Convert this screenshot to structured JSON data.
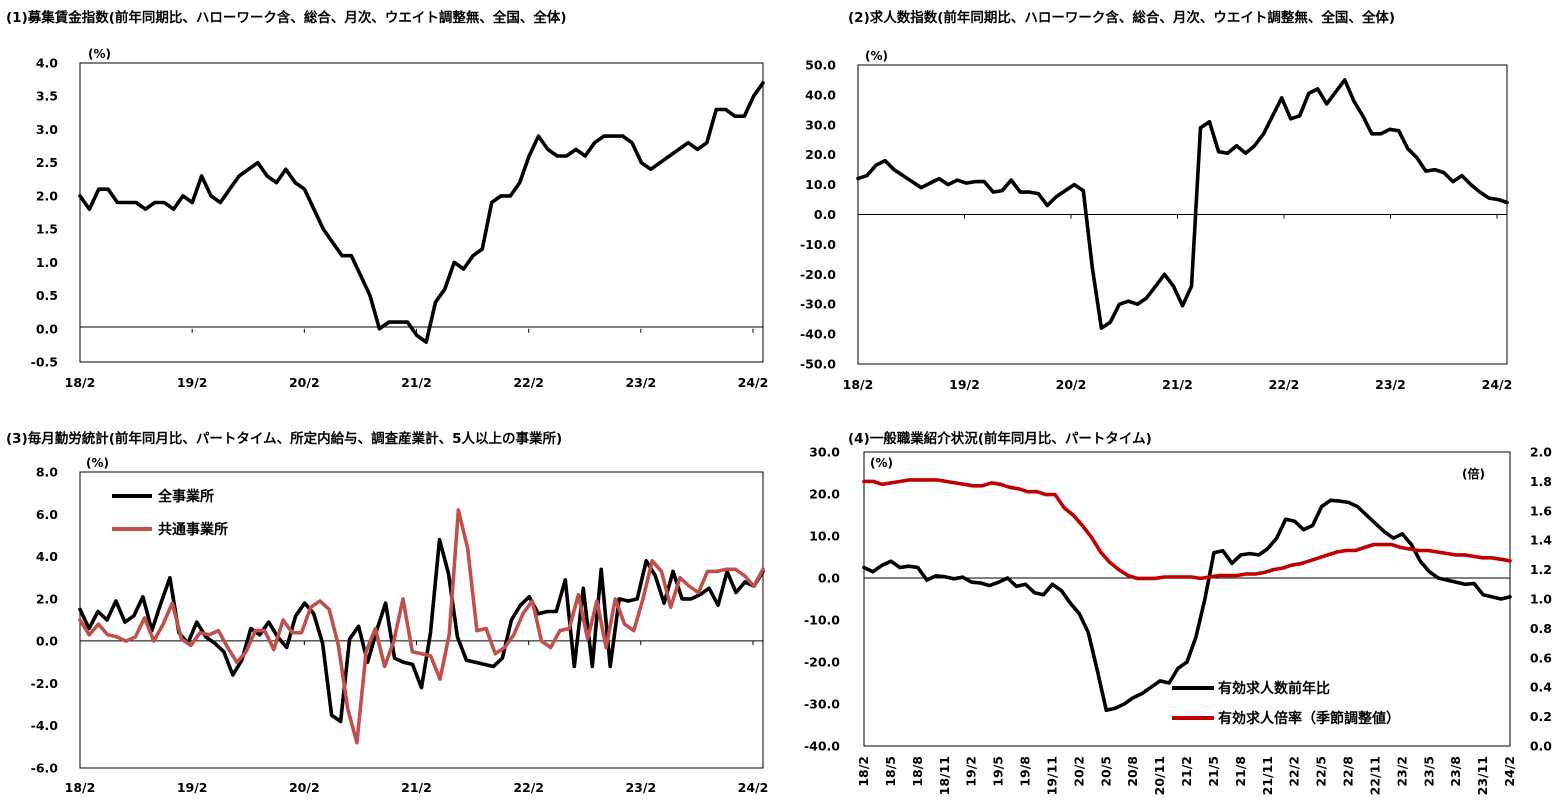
{
  "colors": {
    "black_series": "#000000",
    "red_series": "#c00000",
    "pink_series": "#c0504d"
  },
  "chart_data": [
    {
      "id": "p1",
      "type": "line",
      "title": "(1)募集賃金指数(前年同期比、ハローワーク含、総合、月次、ウエイト調整無、全国、全体)",
      "unit": "(%)",
      "ylim": [
        -0.5,
        4.0
      ],
      "yticks": [
        "4.0",
        "3.5",
        "3.0",
        "2.5",
        "2.0",
        "1.5",
        "1.0",
        "0.5",
        "0.0",
        "-0.5"
      ],
      "xticks": [
        "18/2",
        "19/2",
        "20/2",
        "21/2",
        "22/2",
        "23/2",
        "24/2"
      ],
      "series": [
        {
          "name": "募集賃金指数",
          "color": "#000000",
          "values": [
            2.0,
            1.8,
            2.1,
            2.1,
            1.9,
            1.9,
            1.9,
            1.8,
            1.9,
            1.9,
            1.8,
            2.0,
            1.9,
            2.3,
            2.0,
            1.9,
            2.1,
            2.3,
            2.4,
            2.5,
            2.3,
            2.2,
            2.4,
            2.2,
            2.1,
            1.8,
            1.5,
            1.3,
            1.1,
            1.1,
            0.8,
            0.5,
            0.0,
            0.1,
            0.1,
            0.1,
            -0.1,
            -0.2,
            0.4,
            0.6,
            1.0,
            0.9,
            1.1,
            1.2,
            1.9,
            2.0,
            2.0,
            2.2,
            2.6,
            2.9,
            2.7,
            2.6,
            2.6,
            2.7,
            2.6,
            2.8,
            2.9,
            2.9,
            2.9,
            2.8,
            2.5,
            2.4,
            2.5,
            2.6,
            2.7,
            2.8,
            2.7,
            2.8,
            3.3,
            3.3,
            3.2,
            3.2,
            3.5,
            3.7
          ]
        }
      ]
    },
    {
      "id": "p2",
      "type": "line",
      "title": "(2)求人数指数(前年同期比、ハローワーク含、総合、月次、ウエイト調整無、全国、全体)",
      "unit": "(%)",
      "ylim": [
        -50,
        50
      ],
      "yticks": [
        "50.0",
        "40.0",
        "30.0",
        "20.0",
        "10.0",
        "0.0",
        "-10.0",
        "-20.0",
        "-30.0",
        "-40.0",
        "-50.0"
      ],
      "xticks": [
        "18/2",
        "19/2",
        "20/2",
        "21/2",
        "22/2",
        "23/2",
        "24/2"
      ],
      "series": [
        {
          "name": "求人数指数",
          "color": "#000000",
          "values": [
            12,
            13,
            16.5,
            18,
            15,
            13,
            11,
            9,
            10.5,
            12,
            10,
            11.5,
            10.5,
            11,
            11,
            7.5,
            8,
            11.5,
            7.5,
            7.5,
            7,
            3,
            6,
            8,
            10,
            8,
            -18,
            -38,
            -36,
            -30,
            -29,
            -30,
            -28,
            -24,
            -20,
            -24,
            -30.5,
            -24,
            29,
            31,
            21,
            20.5,
            23,
            20.5,
            23,
            27,
            33,
            39,
            32,
            33,
            40.5,
            42,
            37,
            41,
            45,
            38,
            33,
            27,
            27,
            28.5,
            28,
            22,
            19,
            14.5,
            15,
            14,
            11,
            13,
            10,
            7.5,
            5.5,
            5,
            4
          ]
        }
      ]
    },
    {
      "id": "p3",
      "type": "line",
      "title": "(3)毎月勤労統計(前年同月比、パートタイム、所定内給与、調査産業計、5人以上の事業所)",
      "unit": "(%)",
      "ylim": [
        -6,
        8
      ],
      "yticks": [
        "8.0",
        "6.0",
        "4.0",
        "2.0",
        "0.0",
        "-2.0",
        "-4.0",
        "-6.0"
      ],
      "xticks": [
        "18/2",
        "19/2",
        "20/2",
        "21/2",
        "22/2",
        "23/2",
        "24/2"
      ],
      "legend": [
        "全事業所",
        "共通事業所"
      ],
      "series": [
        {
          "name": "全事業所",
          "color": "#000000",
          "values": [
            1.5,
            0.6,
            1.4,
            1.0,
            1.9,
            0.9,
            1.2,
            2.1,
            0.5,
            1.8,
            3.0,
            0.4,
            -0.1,
            0.9,
            0.2,
            -0.1,
            -0.5,
            -1.6,
            -0.9,
            0.6,
            0.3,
            0.9,
            0.2,
            -0.3,
            1.2,
            1.8,
            1.3,
            -0.1,
            -3.5,
            -3.8,
            0.1,
            0.7,
            -1.0,
            0.5,
            1.8,
            -0.8,
            -1.0,
            -1.1,
            -2.2,
            0.4,
            4.8,
            3.2,
            0.2,
            -0.9,
            -1.0,
            -1.1,
            -1.2,
            -0.8,
            1.0,
            1.7,
            2.1,
            1.3,
            1.4,
            1.4,
            2.9,
            -1.2,
            2.5,
            -1.2,
            3.4,
            -1.2,
            2.0,
            1.9,
            2.0,
            3.8,
            3.1,
            1.8,
            3.3,
            2.0,
            2.0,
            2.2,
            2.5,
            1.7,
            3.3,
            2.3,
            2.8,
            2.6,
            3.3
          ]
        },
        {
          "name": "共通事業所",
          "color": "#c0504d",
          "values": [
            1.0,
            0.3,
            0.8,
            0.3,
            0.2,
            0.0,
            0.2,
            1.1,
            0.0,
            0.8,
            1.8,
            0.1,
            -0.2,
            0.4,
            0.3,
            0.5,
            -0.3,
            -1.0,
            -0.5,
            0.5,
            0.5,
            -0.4,
            1.0,
            0.4,
            0.4,
            1.6,
            1.9,
            1.5,
            -0.2,
            -3.2,
            -4.8,
            -0.5,
            0.6,
            -1.2,
            0.0,
            2.0,
            -0.5,
            -0.6,
            -0.7,
            -1.8,
            0.3,
            6.2,
            4.4,
            0.5,
            0.6,
            -0.6,
            -0.3,
            0.3,
            1.3,
            1.9,
            0.0,
            -0.3,
            0.5,
            0.6,
            2.2,
            0.1,
            1.9,
            -0.3,
            2.0,
            0.8,
            0.5,
            2.0,
            3.8,
            3.3,
            1.6,
            3.0,
            2.6,
            2.3,
            3.3,
            3.3,
            3.4,
            3.4,
            3.1,
            2.6,
            3.4
          ]
        }
      ]
    },
    {
      "id": "p4",
      "type": "line",
      "title": "(4)一般職業紹介状況(前年同月比、パートタイム)",
      "unit_left": "(%)",
      "unit_right": "(倍)",
      "ylim": [
        -40,
        30
      ],
      "ylim_right": [
        0.0,
        2.0
      ],
      "yticks": [
        "30.0",
        "20.0",
        "10.0",
        "0.0",
        "-10.0",
        "-20.0",
        "-30.0",
        "-40.0"
      ],
      "yticks_right": [
        "2.0",
        "1.8",
        "1.6",
        "1.4",
        "1.2",
        "1.0",
        "0.8",
        "0.6",
        "0.4",
        "0.2",
        "0.0"
      ],
      "xticks": [
        "18/2",
        "18/5",
        "18/8",
        "18/11",
        "19/2",
        "19/5",
        "19/8",
        "19/11",
        "20/2",
        "20/5",
        "20/8",
        "20/11",
        "21/2",
        "21/5",
        "21/8",
        "21/11",
        "22/2",
        "22/5",
        "22/8",
        "22/11",
        "23/2",
        "23/5",
        "23/8",
        "23/11",
        "24/2"
      ],
      "legend": [
        "有効求人数前年比",
        "有効求人倍率（季節調整値）"
      ],
      "series": [
        {
          "name": "有効求人数前年比",
          "axis": "left",
          "color": "#000000",
          "values": [
            2.5,
            1.5,
            3.0,
            4.0,
            2.5,
            2.8,
            2.5,
            -0.5,
            0.5,
            0.3,
            -0.2,
            0.2,
            -1.0,
            -1.2,
            -1.8,
            -1.0,
            0.0,
            -2.0,
            -1.5,
            -3.5,
            -4.0,
            -1.5,
            -3.0,
            -6.0,
            -8.5,
            -13.0,
            -22.0,
            -31.5,
            -31.0,
            -30.0,
            -28.5,
            -27.5,
            -26.0,
            -24.5,
            -25.0,
            -21.5,
            -20.0,
            -14.0,
            -5.0,
            6.0,
            6.5,
            3.5,
            5.5,
            5.8,
            5.5,
            7.0,
            9.5,
            14.0,
            13.5,
            11.5,
            12.5,
            17.0,
            18.5,
            18.3,
            18.0,
            17.0,
            15.0,
            13.0,
            11.0,
            9.5,
            10.5,
            8.0,
            4.0,
            1.5,
            0.0,
            -0.5,
            -1.0,
            -1.5,
            -1.3,
            -4.0,
            -4.5,
            -5.0,
            -4.5
          ]
        },
        {
          "name": "有効求人倍率（季節調整値）",
          "axis": "right",
          "color": "#c00000",
          "values": [
            1.8,
            1.8,
            1.78,
            1.79,
            1.8,
            1.81,
            1.81,
            1.81,
            1.81,
            1.8,
            1.79,
            1.78,
            1.77,
            1.77,
            1.79,
            1.78,
            1.76,
            1.75,
            1.73,
            1.73,
            1.71,
            1.71,
            1.62,
            1.57,
            1.5,
            1.42,
            1.32,
            1.25,
            1.2,
            1.16,
            1.14,
            1.14,
            1.14,
            1.15,
            1.15,
            1.15,
            1.15,
            1.14,
            1.15,
            1.16,
            1.16,
            1.16,
            1.17,
            1.17,
            1.18,
            1.2,
            1.21,
            1.23,
            1.24,
            1.26,
            1.28,
            1.3,
            1.32,
            1.33,
            1.33,
            1.35,
            1.37,
            1.37,
            1.37,
            1.35,
            1.34,
            1.33,
            1.33,
            1.32,
            1.31,
            1.3,
            1.3,
            1.29,
            1.28,
            1.28,
            1.27,
            1.26
          ]
        }
      ]
    }
  ]
}
